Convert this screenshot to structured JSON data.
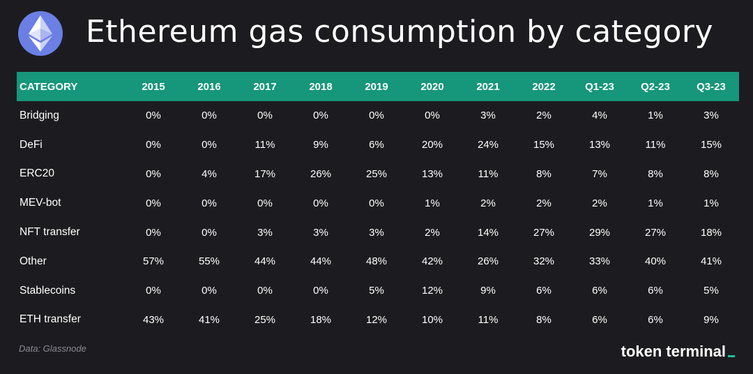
{
  "header": {
    "logo_icon": "ethereum-diamond-icon",
    "title": "Ethereum gas consumption by category"
  },
  "colors": {
    "background": "#1c1c20",
    "header_row": "#16967a",
    "logo_circle": "#6b7fe4",
    "accent": "#16c39a"
  },
  "chart_data": {
    "type": "table",
    "title": "Ethereum gas consumption by category",
    "row_header": "CATEGORY",
    "columns": [
      "2015",
      "2016",
      "2017",
      "2018",
      "2019",
      "2020",
      "2021",
      "2022",
      "Q1-23",
      "Q2-23",
      "Q3-23"
    ],
    "rows": [
      {
        "category": "Bridging",
        "values": [
          "0%",
          "0%",
          "0%",
          "0%",
          "0%",
          "0%",
          "3%",
          "2%",
          "4%",
          "1%",
          "3%"
        ]
      },
      {
        "category": "DeFi",
        "values": [
          "0%",
          "0%",
          "11%",
          "9%",
          "6%",
          "20%",
          "24%",
          "15%",
          "13%",
          "11%",
          "15%"
        ]
      },
      {
        "category": "ERC20",
        "values": [
          "0%",
          "4%",
          "17%",
          "26%",
          "25%",
          "13%",
          "11%",
          "8%",
          "7%",
          "8%",
          "8%"
        ]
      },
      {
        "category": "MEV-bot",
        "values": [
          "0%",
          "0%",
          "0%",
          "0%",
          "0%",
          "1%",
          "2%",
          "2%",
          "2%",
          "1%",
          "1%"
        ]
      },
      {
        "category": "NFT transfer",
        "values": [
          "0%",
          "0%",
          "3%",
          "3%",
          "3%",
          "2%",
          "14%",
          "27%",
          "29%",
          "27%",
          "18%"
        ]
      },
      {
        "category": "Other",
        "values": [
          "57%",
          "55%",
          "44%",
          "44%",
          "48%",
          "42%",
          "26%",
          "32%",
          "33%",
          "40%",
          "41%"
        ]
      },
      {
        "category": "Stablecoins",
        "values": [
          "0%",
          "0%",
          "0%",
          "0%",
          "5%",
          "12%",
          "9%",
          "6%",
          "6%",
          "6%",
          "5%"
        ]
      },
      {
        "category": "ETH transfer",
        "values": [
          "43%",
          "41%",
          "25%",
          "18%",
          "12%",
          "10%",
          "11%",
          "8%",
          "6%",
          "6%",
          "9%"
        ]
      }
    ]
  },
  "footer": {
    "source": "Data: Glassnode",
    "brand": "token terminal"
  }
}
